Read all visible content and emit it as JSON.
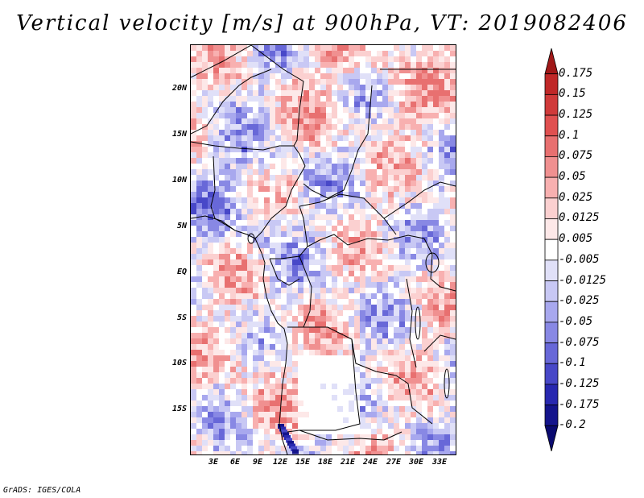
{
  "title": "Vertical velocity [m/s] at 900hPa, VT: 2019082406",
  "credit": "GrADS: IGES/COLA",
  "axes": {
    "lat_labels": [
      "20N",
      "15N",
      "10N",
      "5N",
      "EQ",
      "5S",
      "10S",
      "15S"
    ],
    "lon_labels": [
      "3E",
      "6E",
      "9E",
      "12E",
      "15E",
      "18E",
      "21E",
      "24E",
      "27E",
      "30E",
      "33E"
    ]
  },
  "colorbar": {
    "labels": [
      "0.175",
      "0.15",
      "0.125",
      "0.1",
      "0.075",
      "0.05",
      "0.025",
      "0.0125",
      "0.005",
      "-0.005",
      "-0.0125",
      "-0.025",
      "-0.05",
      "-0.075",
      "-0.1",
      "-0.125",
      "-0.175",
      "-0.2"
    ],
    "colors": [
      "#a01818",
      "#c02828",
      "#d03a3a",
      "#e05050",
      "#e87070",
      "#f09090",
      "#f8b0b0",
      "#fbd0d0",
      "#fde8e8",
      "#ffffff",
      "#e0e0f8",
      "#c8c8f4",
      "#a8a8ee",
      "#8888e4",
      "#6868d8",
      "#4848c8",
      "#2828b0",
      "#14148c",
      "#0a0a70"
    ]
  }
}
